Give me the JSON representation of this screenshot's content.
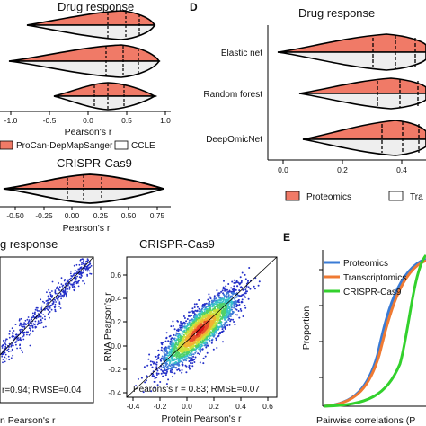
{
  "panels": {
    "c_top": {
      "title": "Drug response",
      "xlabel": "Pearson's r",
      "ticks": [
        "-1.0",
        "-0.5",
        "0.0",
        "0.5",
        "1.0"
      ],
      "legend": [
        "ProCan-DepMapSanger",
        "CCLE"
      ]
    },
    "c_bottom": {
      "title": "CRISPR-Cas9",
      "xlabel": "Pearson's r",
      "ticks": [
        "-0.50",
        "-0.25",
        "0.00",
        "0.25",
        "0.50",
        "0.75"
      ]
    },
    "d": {
      "label": "D",
      "title": "Drug response",
      "rows": [
        "Elastic net",
        "Random forest",
        "DeepOmicNet"
      ],
      "ticks": [
        "0.0",
        "0.2",
        "0.4"
      ],
      "legend": [
        "Proteomics",
        "Tra"
      ]
    },
    "scatter_left": {
      "title": "g response",
      "xlabel": "n Pearson's r",
      "stat": "r=0.94; RMSE=0.04"
    },
    "scatter_right": {
      "title": "CRISPR-Cas9",
      "xlabel": "Protein Pearson's r",
      "ylabel": "RNA Pearson's r",
      "xticks": [
        "-0.4",
        "-0.2",
        "0.0",
        "0.2",
        "0.4",
        "0.6"
      ],
      "yticks": [
        "-0.4",
        "-0.2",
        "0.0",
        "0.2",
        "0.4",
        "0.6"
      ],
      "stat": "Pearons's r = 0.83; RMSE=0.07"
    },
    "e": {
      "label": "E",
      "ylabel": "Proportion",
      "xlabel": "Pairwise correlations (P",
      "legend": [
        "Proteomics",
        "Transcriptomics",
        "CRISPR-Cas9"
      ]
    }
  },
  "colors": {
    "salmon": "#f07a67",
    "grey_fill": "#eeeeee",
    "blue": "#3a7bd5",
    "orange": "#ef7a33",
    "green": "#33d12d",
    "scatter_blue": "#2430c8"
  }
}
